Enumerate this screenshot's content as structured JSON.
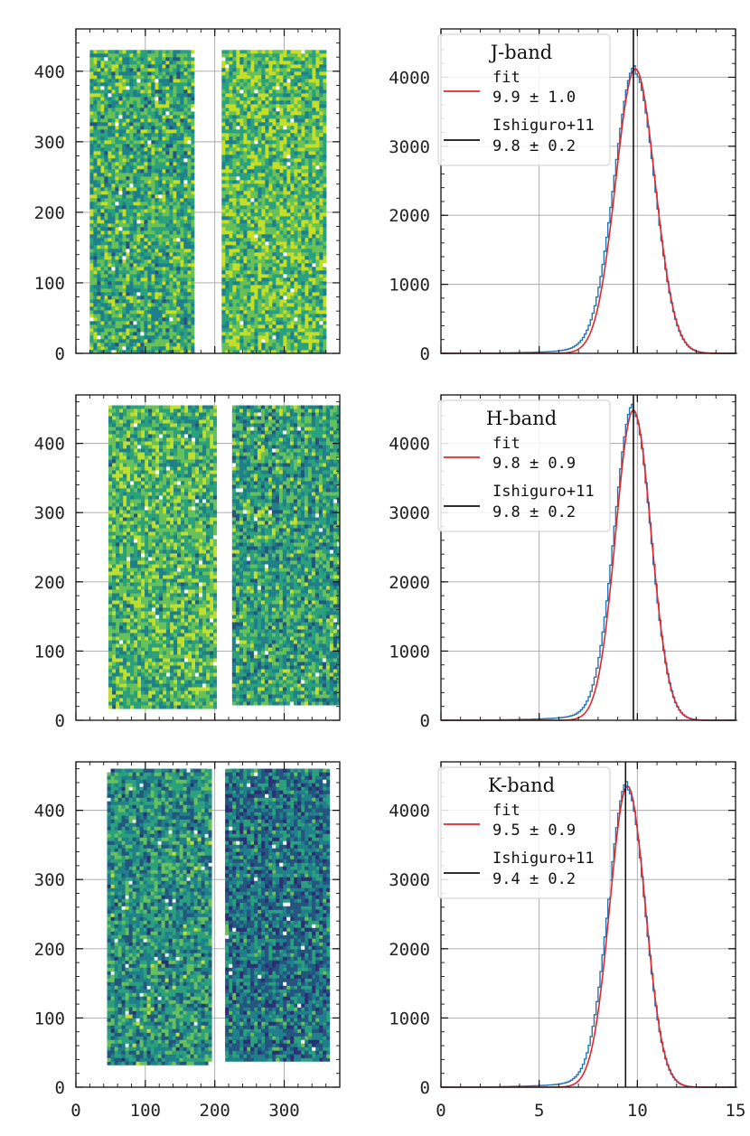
{
  "colors": {
    "fit": "#e3262c",
    "histogram": "#1f77b4",
    "reference": "#111111",
    "grid": "#a6a6a6",
    "colormap": [
      "#2b2f74",
      "#23557f",
      "#1f7f8a",
      "#2aa07c",
      "#68c058",
      "#c3df2a"
    ]
  },
  "chart_data": [
    {
      "type": "scatter",
      "panel": "J-band map",
      "xlim": [
        0,
        380
      ],
      "ylim": [
        0,
        460
      ],
      "xticks": [
        0,
        100,
        200,
        300
      ],
      "yticks": [
        0,
        100,
        200,
        300,
        400
      ],
      "ytick_labels": [
        "0",
        "100",
        "200",
        "300",
        "400"
      ],
      "xtick_labels": [],
      "blocks": [
        {
          "x": [
            20,
            170
          ],
          "y": [
            3,
            430
          ],
          "level": 0.62
        },
        {
          "x": [
            210,
            358
          ],
          "y": [
            3,
            430
          ],
          "level": 0.72
        }
      ]
    },
    {
      "type": "line",
      "panel": "J-band histogram",
      "title": "J-band",
      "xlim": [
        0,
        15
      ],
      "ylim": [
        0,
        4700
      ],
      "xticks": [
        0,
        5,
        10,
        15
      ],
      "yticks": [
        0,
        1000,
        2000,
        3000,
        4000
      ],
      "ytick_labels": [
        "0",
        "1000",
        "2000",
        "3000",
        "4000"
      ],
      "xtick_labels": [],
      "series": [
        {
          "name": "fit",
          "mean": 9.9,
          "sigma": 1.0,
          "peak": 4120,
          "label": "fit",
          "value_label": "9.9 ± 1.0"
        },
        {
          "name": "histogram",
          "mean": 9.9,
          "sigma": 1.0,
          "peak": 4050
        },
        {
          "name": "Ishiguro+11",
          "x": 9.8,
          "label": "Ishiguro+11",
          "value_label": "9.8 ± 0.2"
        }
      ]
    },
    {
      "type": "scatter",
      "panel": "H-band map",
      "xlim": [
        0,
        380
      ],
      "ylim": [
        0,
        470
      ],
      "xticks": [
        0,
        100,
        200,
        300
      ],
      "yticks": [
        0,
        100,
        200,
        300,
        400
      ],
      "ytick_labels": [
        "0",
        "100",
        "200",
        "300",
        "400"
      ],
      "xtick_labels": [],
      "blocks": [
        {
          "x": [
            47,
            200
          ],
          "y": [
            20,
            455
          ],
          "level": 0.68
        },
        {
          "x": [
            225,
            380
          ],
          "y": [
            25,
            455
          ],
          "level": 0.58
        }
      ]
    },
    {
      "type": "line",
      "panel": "H-band histogram",
      "title": "H-band",
      "xlim": [
        0,
        15
      ],
      "ylim": [
        0,
        4700
      ],
      "xticks": [
        0,
        5,
        10,
        15
      ],
      "yticks": [
        0,
        1000,
        2000,
        3000,
        4000
      ],
      "ytick_labels": [
        "0",
        "1000",
        "2000",
        "3000",
        "4000"
      ],
      "xtick_labels": [],
      "series": [
        {
          "name": "fit",
          "mean": 9.8,
          "sigma": 0.9,
          "peak": 4480,
          "label": "fit",
          "value_label": "9.8 ± 0.9"
        },
        {
          "name": "histogram",
          "mean": 9.8,
          "sigma": 0.9,
          "peak": 4450
        },
        {
          "name": "Ishiguro+11",
          "x": 9.8,
          "label": "Ishiguro+11",
          "value_label": "9.8 ± 0.2"
        }
      ]
    },
    {
      "type": "scatter",
      "panel": "K-band map",
      "xlim": [
        0,
        380
      ],
      "ylim": [
        0,
        470
      ],
      "xticks": [
        0,
        100,
        200,
        300
      ],
      "yticks": [
        0,
        100,
        200,
        300,
        400
      ],
      "ytick_labels": [
        "0",
        "100",
        "200",
        "300",
        "400"
      ],
      "xtick_labels": [
        "0",
        "100",
        "200",
        "300"
      ],
      "blocks": [
        {
          "x": [
            45,
            195
          ],
          "y": [
            35,
            460
          ],
          "level": 0.5
        },
        {
          "x": [
            215,
            365
          ],
          "y": [
            40,
            460
          ],
          "level": 0.38
        }
      ]
    },
    {
      "type": "line",
      "panel": "K-band histogram",
      "title": "K-band",
      "xlim": [
        0,
        15
      ],
      "ylim": [
        0,
        4700
      ],
      "xticks": [
        0,
        5,
        10,
        15
      ],
      "yticks": [
        0,
        1000,
        2000,
        3000,
        4000
      ],
      "ytick_labels": [
        "0",
        "1000",
        "2000",
        "3000",
        "4000"
      ],
      "xtick_labels": [
        "0",
        "5",
        "10",
        "15"
      ],
      "series": [
        {
          "name": "fit",
          "mean": 9.5,
          "sigma": 0.9,
          "peak": 4350,
          "label": "fit",
          "value_label": "9.5 ± 0.9"
        },
        {
          "name": "histogram",
          "mean": 9.5,
          "sigma": 0.9,
          "peak": 4300
        },
        {
          "name": "Ishiguro+11",
          "x": 9.4,
          "label": "Ishiguro+11",
          "value_label": "9.4 ± 0.2"
        }
      ]
    }
  ]
}
